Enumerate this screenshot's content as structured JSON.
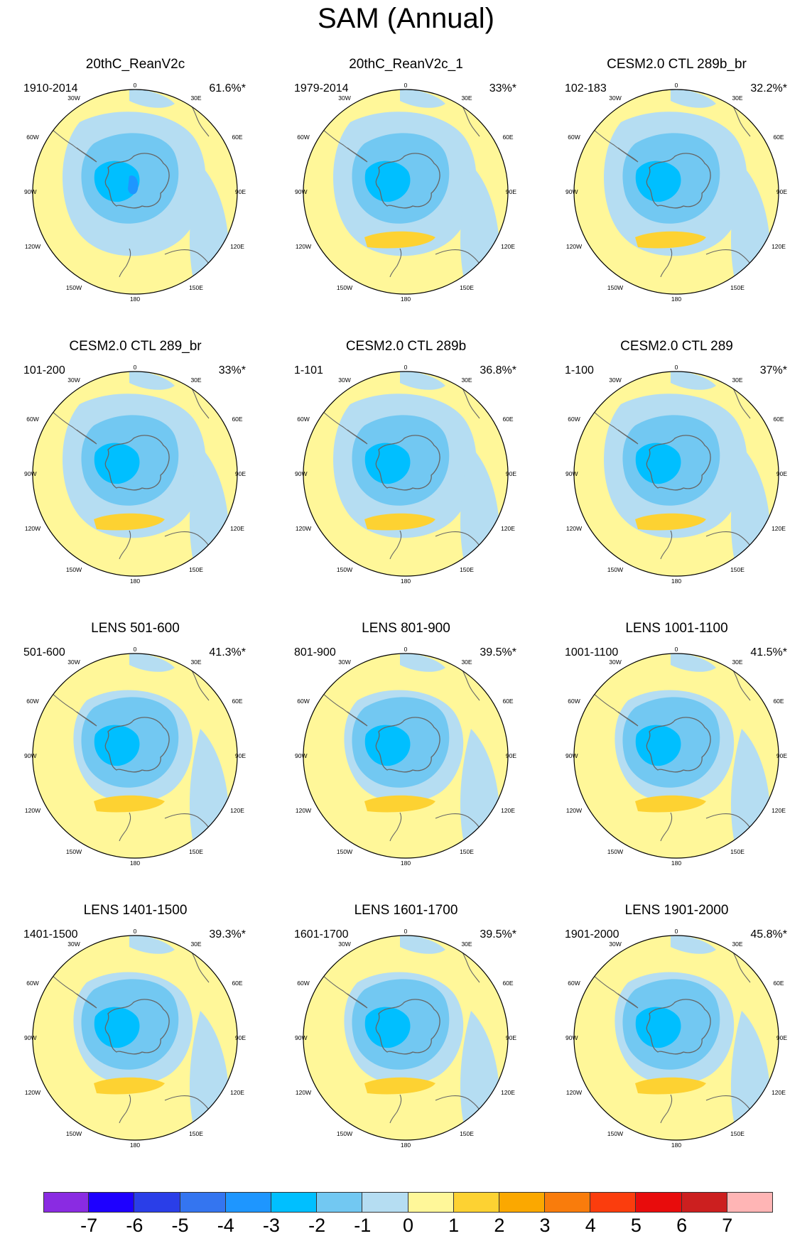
{
  "figure": {
    "title": "SAM (Annual)"
  },
  "coord_labels": {
    "top": "0",
    "bottom": "180",
    "left": "90W",
    "right": "90E",
    "l30": "30W",
    "r30": "30E",
    "l60": "60W",
    "r60": "60E",
    "l120": "120W",
    "r120": "120E",
    "l150": "150W",
    "r150": "150E"
  },
  "panels": [
    {
      "title": "20thC_ReanV2c",
      "years": "1910-2014",
      "variance": "61.6%*"
    },
    {
      "title": "20thC_ReanV2c_1",
      "years": "1979-2014",
      "variance": "33%*"
    },
    {
      "title": "CESM2.0 CTL 289b_br",
      "years": "102-183",
      "variance": "32.2%*"
    },
    {
      "title": "CESM2.0 CTL 289_br",
      "years": "101-200",
      "variance": "33%*"
    },
    {
      "title": "CESM2.0 CTL 289b",
      "years": "1-101",
      "variance": "36.8%*"
    },
    {
      "title": "CESM2.0 CTL 289",
      "years": "1-100",
      "variance": "37%*"
    },
    {
      "title": "LENS 501-600",
      "years": "501-600",
      "variance": "41.3%*"
    },
    {
      "title": "LENS 801-900",
      "years": "801-900",
      "variance": "39.5%*"
    },
    {
      "title": "LENS 1001-1100",
      "years": "1001-1100",
      "variance": "41.5%*"
    },
    {
      "title": "LENS 1401-1500",
      "years": "1401-1500",
      "variance": "39.3%*"
    },
    {
      "title": "LENS 1601-1700",
      "years": "1601-1700",
      "variance": "39.5%*"
    },
    {
      "title": "LENS 1901-2000",
      "years": "1901-2000",
      "variance": "45.8%*"
    }
  ],
  "colorbar": {
    "ticks": [
      "-7",
      "-6",
      "-5",
      "-4",
      "-3",
      "-2",
      "-1",
      "0",
      "1",
      "2",
      "3",
      "4",
      "5",
      "6",
      "7"
    ],
    "colors": [
      "#8a2be2",
      "#1e00ff",
      "#2a3ee8",
      "#3475f0",
      "#1e96ff",
      "#00bfff",
      "#72c8f2",
      "#b5ddf2",
      "#fff799",
      "#fdd232",
      "#fba800",
      "#f97c0c",
      "#fb3d0d",
      "#e80c0c",
      "#cc1f1f",
      "#ffb5b5"
    ]
  },
  "palette": {
    "ocean_pos": "#fff799",
    "neg1": "#b5ddf2",
    "neg2": "#72c8f2",
    "neg3": "#00bfff",
    "neg4": "#1e96ff",
    "pos2": "#fdd232",
    "coast": "#666666"
  },
  "chart_data": {
    "type": "heatmap",
    "projection": "south polar stereographic",
    "variable": "SAM regression pattern (annual)",
    "levels": [
      -7,
      -6,
      -5,
      -4,
      -3,
      -2,
      -1,
      0,
      1,
      2,
      3,
      4,
      5,
      6,
      7
    ],
    "panels": [
      {
        "title": "20thC_ReanV2c",
        "years": "1910-2014",
        "variance_explained_pct": 61.6,
        "center_min": -4
      },
      {
        "title": "20thC_ReanV2c_1",
        "years": "1979-2014",
        "variance_explained_pct": 33,
        "center_min": -3
      },
      {
        "title": "CESM2.0 CTL 289b_br",
        "years": "102-183",
        "variance_explained_pct": 32.2,
        "center_min": -3
      },
      {
        "title": "CESM2.0 CTL 289_br",
        "years": "101-200",
        "variance_explained_pct": 33,
        "center_min": -3
      },
      {
        "title": "CESM2.0 CTL 289b",
        "years": "1-101",
        "variance_explained_pct": 36.8,
        "center_min": -3
      },
      {
        "title": "CESM2.0 CTL 289",
        "years": "1-100",
        "variance_explained_pct": 37,
        "center_min": -3
      },
      {
        "title": "LENS 501-600",
        "years": "501-600",
        "variance_explained_pct": 41.3,
        "center_min": -3
      },
      {
        "title": "LENS 801-900",
        "years": "801-900",
        "variance_explained_pct": 39.5,
        "center_min": -3
      },
      {
        "title": "LENS 1001-1100",
        "years": "1001-1100",
        "variance_explained_pct": 41.5,
        "center_min": -3
      },
      {
        "title": "LENS 1401-1500",
        "years": "1401-1500",
        "variance_explained_pct": 39.3,
        "center_min": -3
      },
      {
        "title": "LENS 1601-1700",
        "years": "1601-1700",
        "variance_explained_pct": 39.5,
        "center_min": -3
      },
      {
        "title": "LENS 1901-2000",
        "years": "1901-2000",
        "variance_explained_pct": 45.8,
        "center_min": -3
      }
    ]
  }
}
